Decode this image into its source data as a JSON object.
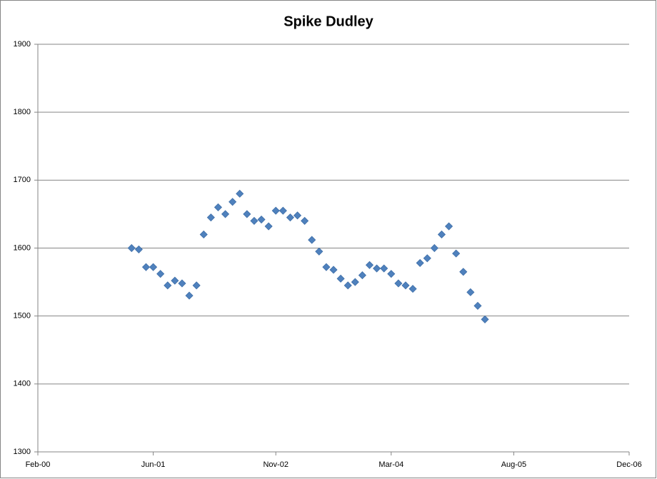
{
  "chart_data": {
    "type": "scatter",
    "title": "Spike Dudley",
    "x": [
      "2001-03",
      "2001-04",
      "2001-05",
      "2001-06",
      "2001-07",
      "2001-08",
      "2001-09",
      "2001-10",
      "2001-11",
      "2001-12",
      "2002-01",
      "2002-02",
      "2002-03",
      "2002-04",
      "2002-05",
      "2002-06",
      "2002-07",
      "2002-08",
      "2002-09",
      "2002-10",
      "2002-11",
      "2002-12",
      "2003-01",
      "2003-02",
      "2003-03",
      "2003-04",
      "2003-05",
      "2003-06",
      "2003-07",
      "2003-08",
      "2003-09",
      "2003-10",
      "2003-11",
      "2003-12",
      "2004-01",
      "2004-02",
      "2004-03",
      "2004-04",
      "2004-05",
      "2004-06",
      "2004-07",
      "2004-08",
      "2004-09",
      "2004-10",
      "2004-11",
      "2004-12",
      "2005-01",
      "2005-02",
      "2005-03",
      "2005-04"
    ],
    "values": [
      1600,
      1598,
      1572,
      1572,
      1562,
      1545,
      1552,
      1548,
      1530,
      1545,
      1620,
      1645,
      1660,
      1650,
      1668,
      1680,
      1650,
      1640,
      1642,
      1632,
      1655,
      1655,
      1645,
      1648,
      1640,
      1612,
      1595,
      1572,
      1568,
      1555,
      1545,
      1550,
      1560,
      1575,
      1570,
      1570,
      1562,
      1548,
      1545,
      1540,
      1578,
      1585,
      1600,
      1620,
      1632,
      1592,
      1565,
      1535,
      1515,
      1495
    ],
    "color": "#4f81bd",
    "xlim": [
      "2000-02",
      "2006-12"
    ],
    "xticks": [
      {
        "value": "2000-02",
        "label": "Feb-00"
      },
      {
        "value": "2001-06",
        "label": "Jun-01"
      },
      {
        "value": "2002-11",
        "label": "Nov-02"
      },
      {
        "value": "2004-03",
        "label": "Mar-04"
      },
      {
        "value": "2005-08",
        "label": "Aug-05"
      },
      {
        "value": "2006-12",
        "label": "Dec-06"
      }
    ],
    "ylim": [
      1300,
      1900
    ],
    "yticks": [
      1300,
      1400,
      1500,
      1600,
      1700,
      1800,
      1900
    ],
    "grid": true
  }
}
